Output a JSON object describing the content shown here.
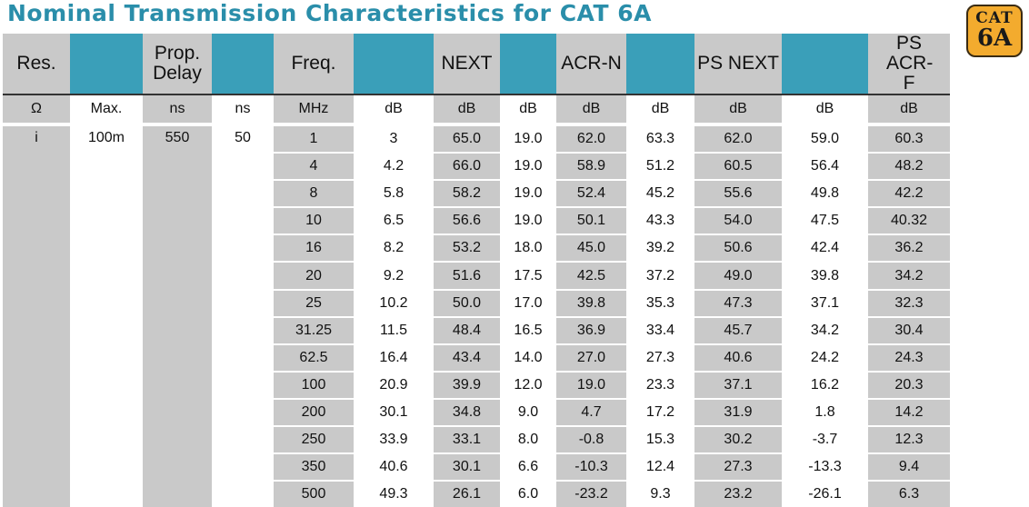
{
  "title": "Nominal Transmission Characteristics for CAT 6A",
  "badge": {
    "line1": "CAT",
    "line2": "6A"
  },
  "headers": [
    "Res.",
    "",
    "Prop. Delay",
    "",
    "Freq.",
    "",
    "NEXT",
    "",
    "ACR-N",
    "",
    "PS NEXT",
    "",
    "PS ACR-F"
  ],
  "units": [
    "Ω",
    "Max.",
    "ns",
    "ns",
    "MHz",
    "dB",
    "dB",
    "dB",
    "dB",
    "dB",
    "dB",
    "dB",
    "dB"
  ],
  "fixed": {
    "res": "i",
    "length": "100m",
    "delay": "550",
    "skew": "50"
  },
  "rows": [
    [
      "1",
      "3",
      "65.0",
      "19.0",
      "62.0",
      "63.3",
      "62.0",
      "59.0",
      "60.3"
    ],
    [
      "4",
      "4.2",
      "66.0",
      "19.0",
      "58.9",
      "51.2",
      "60.5",
      "56.4",
      "48.2"
    ],
    [
      "8",
      "5.8",
      "58.2",
      "19.0",
      "52.4",
      "45.2",
      "55.6",
      "49.8",
      "42.2"
    ],
    [
      "10",
      "6.5",
      "56.6",
      "19.0",
      "50.1",
      "43.3",
      "54.0",
      "47.5",
      "40.32"
    ],
    [
      "16",
      "8.2",
      "53.2",
      "18.0",
      "45.0",
      "39.2",
      "50.6",
      "42.4",
      "36.2"
    ],
    [
      "20",
      "9.2",
      "51.6",
      "17.5",
      "42.5",
      "37.2",
      "49.0",
      "39.8",
      "34.2"
    ],
    [
      "25",
      "10.2",
      "50.0",
      "17.0",
      "39.8",
      "35.3",
      "47.3",
      "37.1",
      "32.3"
    ],
    [
      "31.25",
      "11.5",
      "48.4",
      "16.5",
      "36.9",
      "33.4",
      "45.7",
      "34.2",
      "30.4"
    ],
    [
      "62.5",
      "16.4",
      "43.4",
      "14.0",
      "27.0",
      "27.3",
      "40.6",
      "24.2",
      "24.3"
    ],
    [
      "100",
      "20.9",
      "39.9",
      "12.0",
      "19.0",
      "23.3",
      "37.1",
      "16.2",
      "20.3"
    ],
    [
      "200",
      "30.1",
      "34.8",
      "9.0",
      "4.7",
      "17.2",
      "31.9",
      "1.8",
      "14.2"
    ],
    [
      "250",
      "33.9",
      "33.1",
      "8.0",
      "-0.8",
      "15.3",
      "30.2",
      "-3.7",
      "12.3"
    ],
    [
      "350",
      "40.6",
      "30.1",
      "6.6",
      "-10.3",
      "12.4",
      "27.3",
      "-13.3",
      "9.4"
    ],
    [
      "500",
      "49.3",
      "26.1",
      "6.0",
      "-23.2",
      "9.3",
      "23.2",
      "-26.1",
      "6.3"
    ]
  ]
}
